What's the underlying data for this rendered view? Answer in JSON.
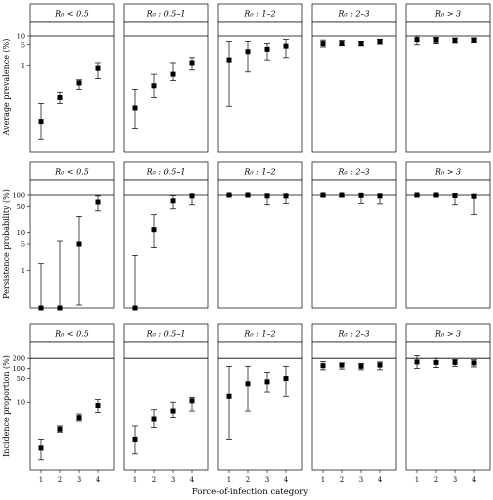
{
  "xlabel": "Force-of-infection category",
  "columns": [
    {
      "label": "R₀ < 0.5"
    },
    {
      "label": "R₀ : 0.5–1"
    },
    {
      "label": "R₀ : 1–2"
    },
    {
      "label": "R₀ : 2–3"
    },
    {
      "label": "R₀ > 3"
    }
  ],
  "chart_data": [
    {
      "type": "scatter",
      "ylabel": "Average prevalence (%)",
      "yscale": "log",
      "ylim": [
        0.0011,
        30
      ],
      "yticks": [
        1,
        5,
        10
      ],
      "ceiling": 10,
      "x": [
        1,
        2,
        3,
        4
      ],
      "xticks": [
        "1",
        "2",
        "3",
        "4"
      ],
      "panels": [
        {
          "col": "R₀ < 0.5",
          "values": [
            0.012,
            0.08,
            0.25,
            0.8
          ],
          "lower": [
            0.003,
            0.05,
            0.15,
            0.35
          ],
          "upper": [
            0.05,
            0.12,
            0.32,
            1.2
          ]
        },
        {
          "col": "R₀ : 0.5–1",
          "values": [
            0.035,
            0.2,
            0.5,
            1.2
          ],
          "lower": [
            0.007,
            0.08,
            0.3,
            0.7
          ],
          "upper": [
            0.15,
            0.5,
            1.2,
            1.8
          ]
        },
        {
          "col": "R₀ : 1–2",
          "values": [
            1.5,
            2.9,
            3.5,
            4.5
          ],
          "lower": [
            0.04,
            0.6,
            1.5,
            1.8
          ],
          "upper": [
            6.5,
            6.5,
            5.5,
            7.5
          ]
        },
        {
          "col": "R₀ : 2–3",
          "values": [
            5.5,
            5.5,
            5.5,
            6.5
          ],
          "lower": [
            4.2,
            4.8,
            4.6,
            5.3
          ],
          "upper": [
            7.2,
            7.0,
            6.5,
            7.7
          ]
        },
        {
          "col": "R₀ > 3",
          "values": [
            7.5,
            7.2,
            7.0,
            7.2
          ],
          "lower": [
            5.0,
            5.5,
            5.8,
            6.0
          ],
          "upper": [
            10,
            9.0,
            8.5,
            8.5
          ]
        }
      ]
    },
    {
      "type": "scatter",
      "ylabel": "Persistence probability (%)",
      "yscale": "log",
      "ylim": [
        0.1,
        250
      ],
      "yticks": [
        1,
        5,
        10,
        50,
        100
      ],
      "ceiling": 100,
      "x": [
        1,
        2,
        3,
        4
      ],
      "xticks": [
        "1",
        "2",
        "3",
        "4"
      ],
      "panels": [
        {
          "col": "R₀ < 0.5",
          "values": [
            0.1,
            0.1,
            5,
            65
          ],
          "lower": [
            0.1,
            0.1,
            0.12,
            38
          ],
          "upper": [
            1.5,
            6,
            27,
            95
          ]
        },
        {
          "col": "R₀ : 0.5–1",
          "values": [
            0.1,
            12,
            70,
            95
          ],
          "lower": [
            0.1,
            4,
            43,
            55
          ],
          "upper": [
            2.5,
            30,
            97,
            100
          ]
        },
        {
          "col": "R₀ : 1–2",
          "values": [
            100,
            100,
            95,
            95
          ],
          "lower": [
            95,
            95,
            55,
            60
          ],
          "upper": [
            100,
            100,
            100,
            100
          ]
        },
        {
          "col": "R₀ : 2–3",
          "values": [
            100,
            100,
            98,
            95
          ],
          "lower": [
            92,
            92,
            60,
            58
          ],
          "upper": [
            100,
            100,
            100,
            100
          ]
        },
        {
          "col": "R₀ > 3",
          "values": [
            100,
            100,
            97,
            93
          ],
          "lower": [
            95,
            95,
            55,
            30
          ],
          "upper": [
            100,
            100,
            100,
            100
          ]
        }
      ]
    },
    {
      "type": "scatter",
      "ylabel": "Incidence proportion (%)",
      "yscale": "log",
      "ylim": [
        0.1,
        600
      ],
      "yticks": [
        10,
        50,
        100,
        200
      ],
      "ceiling": 200,
      "x": [
        1,
        2,
        3,
        4
      ],
      "xticks": [
        "1",
        "2",
        "3",
        "4"
      ],
      "panels": [
        {
          "col": "R₀ < 0.5",
          "values": [
            0.45,
            1.6,
            3.5,
            8
          ],
          "lower": [
            0.2,
            1.3,
            2.8,
            5
          ],
          "upper": [
            0.8,
            2.0,
            4.5,
            12
          ]
        },
        {
          "col": "R₀ : 0.5–1",
          "values": [
            0.8,
            3.2,
            5.5,
            11
          ],
          "lower": [
            0.3,
            1.8,
            3.5,
            5.5
          ],
          "upper": [
            2.0,
            6.0,
            10,
            14
          ]
        },
        {
          "col": "R₀ : 1–2",
          "values": [
            15,
            35,
            40,
            50
          ],
          "lower": [
            0.8,
            5.5,
            20,
            15
          ],
          "upper": [
            115,
            115,
            75,
            115
          ]
        },
        {
          "col": "R₀ : 2–3",
          "values": [
            120,
            125,
            115,
            125
          ],
          "lower": [
            90,
            95,
            90,
            90
          ],
          "upper": [
            160,
            145,
            140,
            155
          ]
        },
        {
          "col": "R₀ > 3",
          "values": [
            155,
            150,
            150,
            145
          ],
          "lower": [
            100,
            105,
            115,
            110
          ],
          "upper": [
            240,
            200,
            185,
            180
          ]
        }
      ]
    }
  ]
}
